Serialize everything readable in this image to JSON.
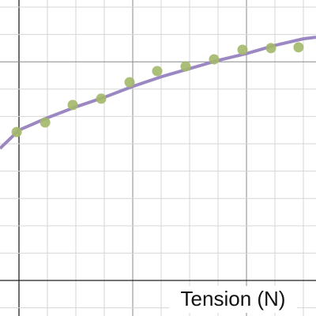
{
  "chart_data": {
    "type": "scatter",
    "x_label": "Tension (N)",
    "xlim": [
      -0.667,
      10.444
    ],
    "ylim": [
      -1.3,
      10.26
    ],
    "xticks": [
      0,
      1,
      2,
      3,
      4,
      5,
      6,
      7,
      8,
      9,
      10
    ],
    "yticks": [
      -1,
      0,
      1,
      2,
      3,
      4,
      5,
      6,
      7,
      8,
      9,
      10
    ],
    "x_major_ticks": [
      0,
      4,
      8
    ],
    "y_major_ticks": [
      0,
      8
    ],
    "grid": true,
    "series": [
      {
        "kind": "points",
        "color": "#a3b86a",
        "x": [
          -0.08,
          0.92,
          1.89,
          2.89,
          3.89,
          4.86,
          5.86,
          6.86,
          7.86,
          8.86,
          9.83
        ],
        "values": [
          5.43,
          5.78,
          6.42,
          6.65,
          7.25,
          7.66,
          7.83,
          8.09,
          8.44,
          8.5,
          8.53
        ]
      },
      {
        "kind": "line",
        "color": "#9b88c2",
        "x": [
          -0.667,
          0,
          1,
          2,
          3,
          4,
          5,
          6,
          7,
          8,
          9,
          10,
          10.444
        ],
        "values": [
          4.83,
          5.5,
          5.95,
          6.35,
          6.7,
          7.1,
          7.45,
          7.75,
          8.05,
          8.3,
          8.6,
          8.84,
          8.9
        ]
      }
    ]
  }
}
